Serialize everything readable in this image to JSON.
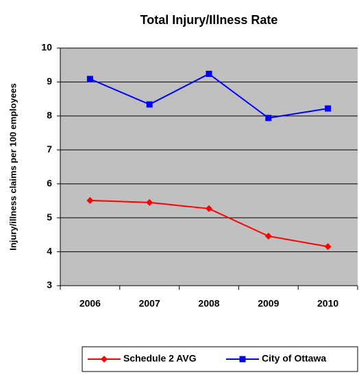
{
  "chart_data": {
    "type": "line",
    "title": "Total Injury/Illness Rate",
    "y_label": "Injury/illness claims per 100 employees",
    "categories": [
      "2006",
      "2007",
      "2008",
      "2009",
      "2010"
    ],
    "series": [
      {
        "name": "Schedule 2 AVG",
        "color": "#ff0000",
        "marker": "diamond",
        "values": [
          5.51,
          5.45,
          5.27,
          4.46,
          4.15
        ]
      },
      {
        "name": "City of Ottawa",
        "color": "#0000ff",
        "marker": "square",
        "values": [
          9.09,
          8.34,
          9.24,
          7.94,
          8.22
        ]
      }
    ],
    "ylim": [
      3,
      10
    ],
    "yticks": [
      3,
      4,
      5,
      6,
      7,
      8,
      9,
      10
    ],
    "grid": true,
    "legend": "bottom"
  }
}
